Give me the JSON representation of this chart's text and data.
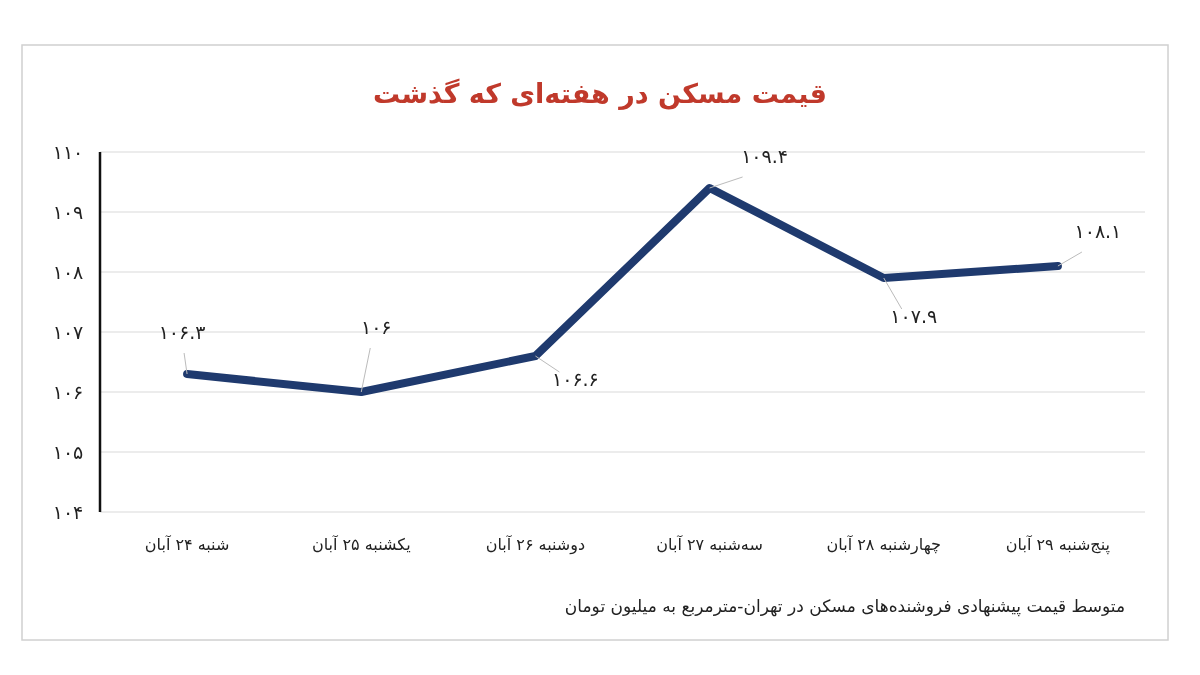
{
  "chart_data": {
    "type": "line",
    "title": "قیمت مسکن در هفته‌ای که گذشت",
    "categories": [
      "شنبه ۲۴ آبان",
      "یکشنبه ۲۵ آبان",
      "دوشنبه ۲۶ آبان",
      "سه‌شنبه ۲۷ آبان",
      "چهارشنبه ۲۸ آبان",
      "پنج‌شنبه ۲۹ آبان"
    ],
    "series": [
      {
        "color": "#1f3a6e",
        "values": [
          106.3,
          106,
          106.6,
          109.4,
          107.9,
          108.1
        ],
        "value_labels": [
          "۱۰۶.۳",
          "۱۰۶",
          "۱۰۶.۶",
          "۱۰۹.۴",
          "۱۰۷.۹",
          "۱۰۸.۱"
        ]
      }
    ],
    "ylim": [
      104,
      110
    ],
    "yticks": [
      {
        "value": 104,
        "label": "۱۰۴"
      },
      {
        "value": 105,
        "label": "۱۰۵"
      },
      {
        "value": 106,
        "label": "۱۰۶"
      },
      {
        "value": 107,
        "label": "۱۰۷"
      },
      {
        "value": 108,
        "label": "۱۰۸"
      },
      {
        "value": 109,
        "label": "۱۰۹"
      },
      {
        "value": 110,
        "label": "۱۱۰"
      }
    ],
    "grid": "y",
    "marker": "none",
    "line_style": "solid",
    "annotations": [
      "متوسط قیمت پیشنهادی فروشنده‌های مسکن در تهران-مترمربع به میلیون تومان"
    ]
  }
}
